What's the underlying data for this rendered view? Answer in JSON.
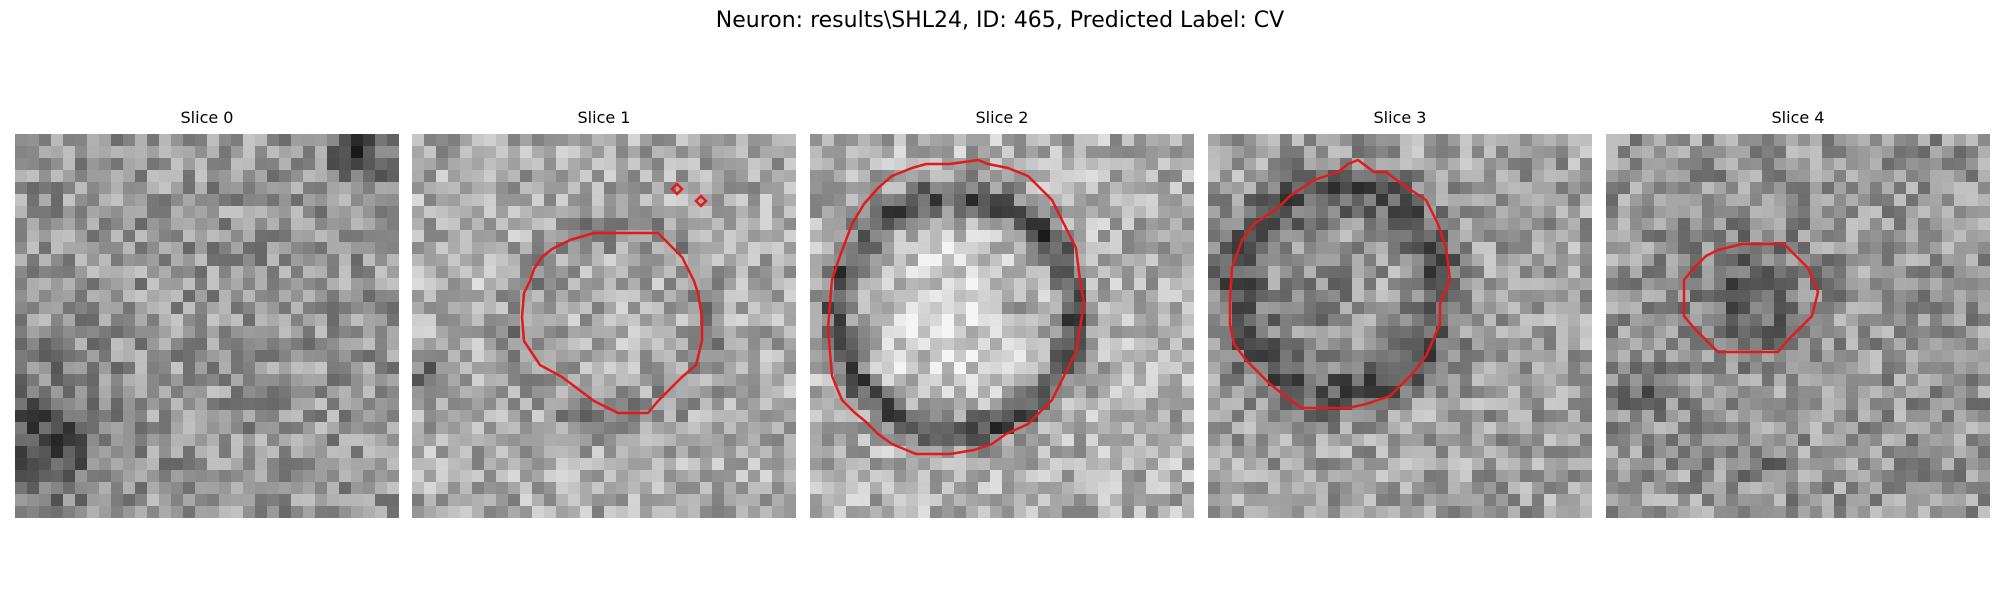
{
  "figure": {
    "title": "Neuron: results\\SHL24, ID: 465, Predicted Label: CV"
  },
  "panels": [
    {
      "title": "Slice 0",
      "has_contour": false
    },
    {
      "title": "Slice 1",
      "has_contour": true
    },
    {
      "title": "Slice 2",
      "has_contour": true
    },
    {
      "title": "Slice 3",
      "has_contour": true
    },
    {
      "title": "Slice 4",
      "has_contour": true
    }
  ],
  "colors": {
    "contour": "#e31a1c",
    "background": "#ffffff"
  }
}
